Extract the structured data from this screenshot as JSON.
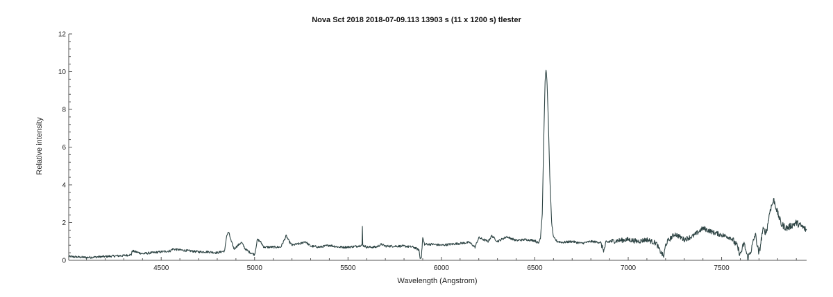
{
  "chart_data": {
    "type": "line",
    "title": "Nova Sct 2018   2018-07-09.113   13903 s (11 x 1200 s)   tlester",
    "xlabel": "Wavelength (Angstrom)",
    "ylabel": "Relative intensity",
    "xlim": [
      4005,
      7955
    ],
    "ylim": [
      0,
      12
    ],
    "x_ticks": [
      4500,
      5000,
      5500,
      6000,
      6500,
      7000,
      7500
    ],
    "y_ticks": [
      0,
      2,
      4,
      6,
      8,
      10,
      12
    ],
    "grid": false,
    "series": [
      {
        "color": "#2f4545",
        "x": [
          4005,
          4100,
          4200,
          4300,
          4340,
          4345,
          4400,
          4450,
          4500,
          4550,
          4560,
          4600,
          4650,
          4700,
          4750,
          4800,
          4840,
          4850,
          4861,
          4875,
          4890,
          4900,
          4930,
          4950,
          4970,
          4990,
          5000,
          5015,
          5030,
          5050,
          5100,
          5140,
          5160,
          5169,
          5185,
          5200,
          5250,
          5270,
          5300,
          5350,
          5400,
          5450,
          5500,
          5550,
          5575,
          5577,
          5579,
          5600,
          5650,
          5680,
          5700,
          5750,
          5800,
          5850,
          5880,
          5886,
          5893,
          5900,
          5905,
          5910,
          5950,
          6000,
          6050,
          6100,
          6150,
          6180,
          6200,
          6250,
          6270,
          6300,
          6320,
          6350,
          6400,
          6450,
          6500,
          6520,
          6530,
          6540,
          6548,
          6555,
          6560,
          6563,
          6566,
          6572,
          6580,
          6590,
          6600,
          6620,
          6650,
          6700,
          6750,
          6800,
          6850,
          6870,
          6880,
          6900,
          6950,
          7000,
          7050,
          7100,
          7150,
          7170,
          7190,
          7200,
          7210,
          7250,
          7300,
          7350,
          7400,
          7450,
          7500,
          7550,
          7580,
          7600,
          7620,
          7640,
          7660,
          7680,
          7700,
          7720,
          7740,
          7760,
          7780,
          7800,
          7820,
          7850,
          7900,
          7955
        ],
        "y": [
          0.2,
          0.15,
          0.2,
          0.25,
          0.3,
          0.5,
          0.35,
          0.4,
          0.45,
          0.5,
          0.6,
          0.55,
          0.5,
          0.45,
          0.45,
          0.4,
          0.5,
          1.3,
          1.5,
          1.0,
          0.6,
          0.7,
          0.95,
          0.6,
          0.45,
          0.35,
          0.3,
          1.1,
          1.0,
          0.7,
          0.7,
          0.7,
          1.1,
          1.3,
          1.0,
          0.8,
          0.9,
          1.0,
          0.75,
          0.7,
          0.8,
          0.7,
          0.7,
          0.75,
          0.8,
          1.8,
          0.8,
          0.7,
          0.7,
          0.85,
          0.75,
          0.75,
          0.75,
          0.7,
          0.55,
          0.1,
          0.2,
          1.2,
          1.0,
          0.85,
          0.85,
          0.8,
          0.85,
          0.9,
          0.95,
          0.7,
          1.2,
          1.0,
          1.3,
          1.0,
          1.1,
          1.25,
          1.05,
          1.1,
          1.05,
          0.9,
          1.2,
          2.5,
          6.5,
          9.5,
          10.1,
          9.8,
          9.3,
          7.5,
          4.5,
          2.0,
          1.2,
          1.0,
          0.95,
          1.0,
          0.9,
          1.0,
          0.95,
          0.5,
          0.9,
          1.0,
          1.05,
          1.1,
          1.0,
          1.1,
          0.9,
          0.5,
          0.2,
          0.8,
          1.0,
          1.4,
          1.1,
          1.3,
          1.7,
          1.5,
          1.35,
          1.2,
          0.8,
          0.3,
          0.9,
          0.1,
          0.6,
          1.4,
          0.3,
          1.6,
          1.5,
          2.7,
          3.2,
          2.5,
          1.9,
          1.7,
          2.0,
          1.6
        ]
      }
    ]
  }
}
